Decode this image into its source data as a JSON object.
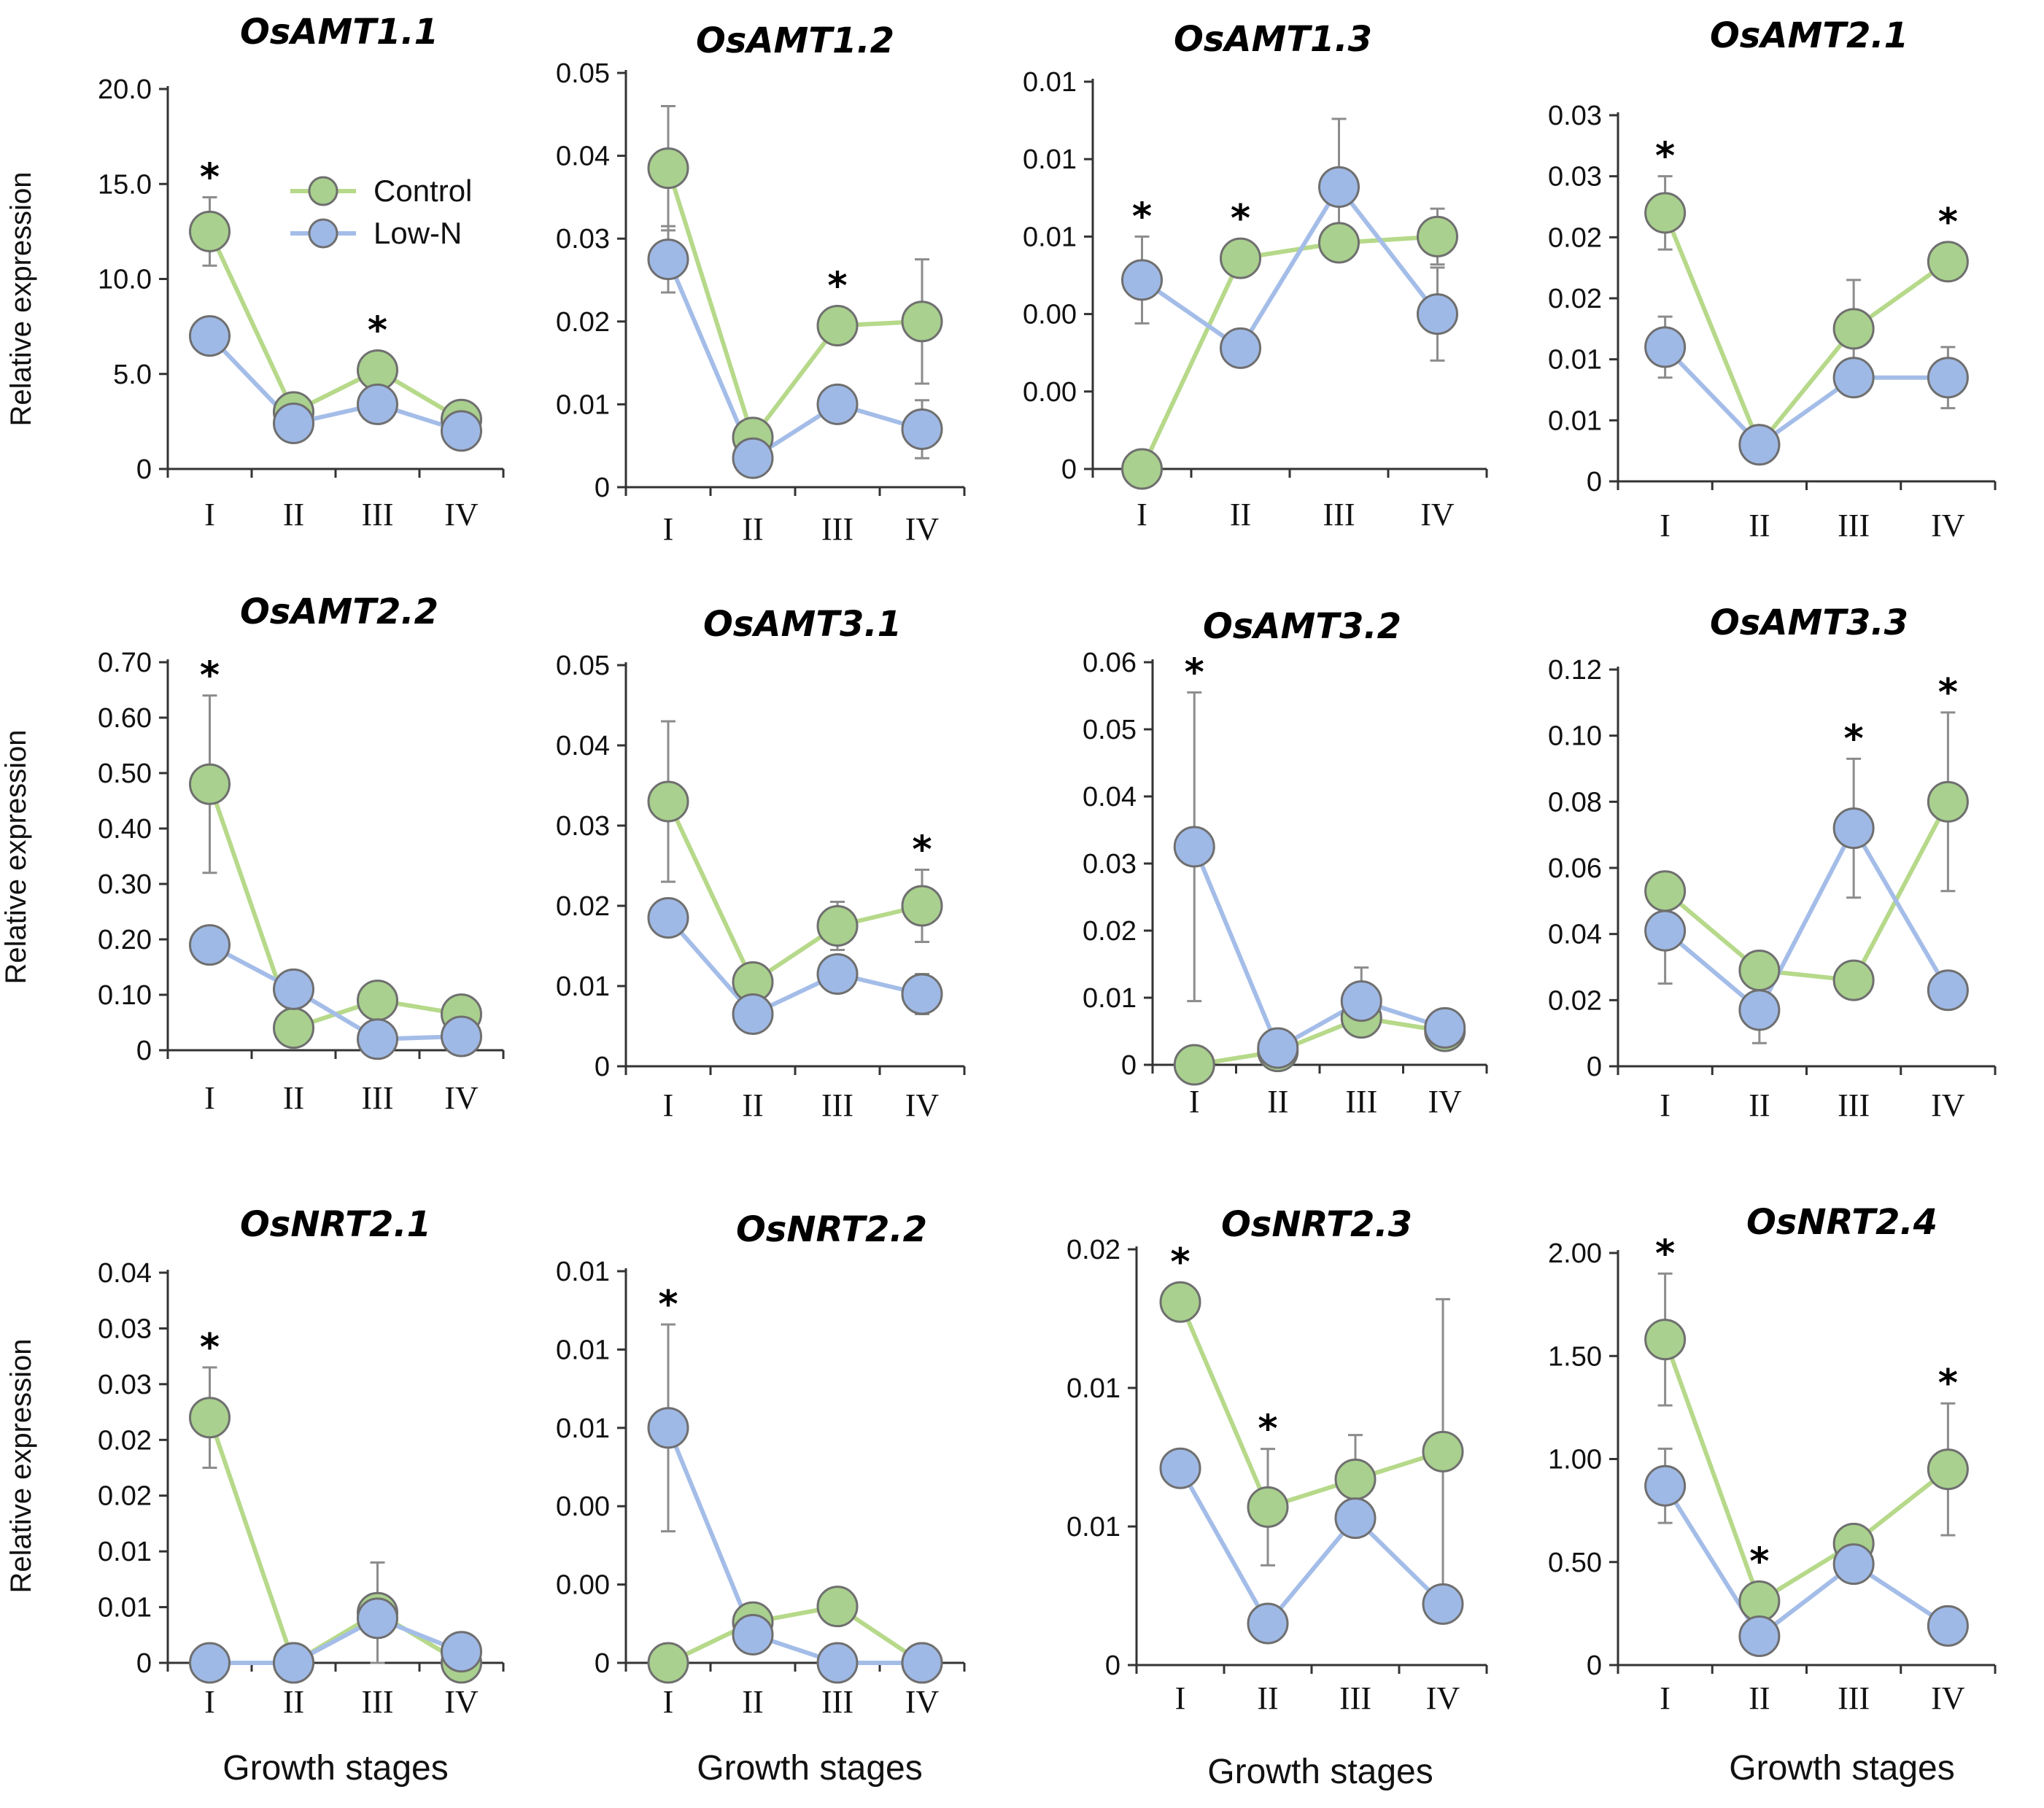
{
  "colors": {
    "control": "#a9d08e",
    "lown": "#9fb9e6",
    "control_line": "#b6d98a",
    "lown_line": "#a4bde8",
    "marker_edge": "#6f6f6f"
  },
  "chart_data": [
    {
      "type": "line",
      "title": "OsAMT1.1",
      "categories": [
        "I",
        "II",
        "III",
        "IV"
      ],
      "yticks": [
        "0",
        "5.0",
        "10.0",
        "15.0",
        "20.0"
      ],
      "ylim": [
        0,
        20
      ],
      "ylabel": "Relative expression",
      "xlabel": "",
      "series": [
        {
          "name": "Control",
          "values": [
            12.5,
            3.0,
            5.2,
            2.6
          ],
          "errors": [
            1.8,
            0.3,
            0.8,
            0.4
          ]
        },
        {
          "name": "Low-N",
          "values": [
            7.0,
            2.4,
            3.4,
            2.0
          ],
          "errors": [
            0.5,
            0.3,
            0.4,
            0.3
          ]
        }
      ],
      "significant": [
        true,
        false,
        true,
        false
      ],
      "legend": [
        "Control",
        "Low-N"
      ]
    },
    {
      "type": "line",
      "title": "OsAMT1.2",
      "categories": [
        "I",
        "II",
        "III",
        "IV"
      ],
      "yticks": [
        "0",
        "0.01",
        "0.02",
        "0.03",
        "0.04",
        "0.05"
      ],
      "ylim": [
        0,
        0.05
      ],
      "ylabel": "",
      "xlabel": "",
      "series": [
        {
          "name": "Control",
          "values": [
            0.0385,
            0.006,
            0.0195,
            0.02
          ],
          "errors": [
            0.0075,
            0.001,
            0.001,
            0.0075
          ]
        },
        {
          "name": "Low-N",
          "values": [
            0.0275,
            0.0035,
            0.01,
            0.007
          ],
          "errors": [
            0.004,
            0.001,
            0.001,
            0.0035
          ]
        }
      ],
      "significant": [
        false,
        false,
        true,
        false
      ]
    },
    {
      "type": "line",
      "title": "OsAMT1.3",
      "categories": [
        "I",
        "II",
        "III",
        "IV"
      ],
      "yticks": [
        "0",
        "0.00",
        "0.00",
        "0.01",
        "0.01",
        "0.01"
      ],
      "ylim": [
        0,
        0.0125
      ],
      "ylabel": "",
      "xlabel": "",
      "series": [
        {
          "name": "Control",
          "values": [
            0.0,
            0.0068,
            0.0073,
            0.0075
          ],
          "errors": [
            0.0,
            0.0002,
            0.0006,
            0.0009
          ]
        },
        {
          "name": "Low-N",
          "values": [
            0.0061,
            0.0039,
            0.0091,
            0.005
          ],
          "errors": [
            0.0014,
            0.0006,
            0.0022,
            0.0015
          ]
        }
      ],
      "significant": [
        true,
        true,
        false,
        false
      ]
    },
    {
      "type": "line",
      "title": "OsAMT2.1",
      "categories": [
        "I",
        "II",
        "III",
        "IV"
      ],
      "yticks": [
        "0",
        "0.01",
        "0.01",
        "0.02",
        "0.02",
        "0.03",
        "0.03"
      ],
      "ylim": [
        0,
        0.03
      ],
      "ylabel": "",
      "xlabel": "",
      "series": [
        {
          "name": "Control",
          "values": [
            0.022,
            0.003,
            0.0125,
            0.018
          ],
          "errors": [
            0.003,
            0.0005,
            0.004,
            0.001
          ]
        },
        {
          "name": "Low-N",
          "values": [
            0.011,
            0.003,
            0.0085,
            0.0085
          ],
          "errors": [
            0.0025,
            0.0005,
            0.0015,
            0.0025
          ]
        }
      ],
      "significant": [
        true,
        false,
        false,
        true
      ]
    },
    {
      "type": "line",
      "title": "OsAMT2.2",
      "categories": [
        "I",
        "II",
        "III",
        "IV"
      ],
      "yticks": [
        "0",
        "0.10",
        "0.20",
        "0.30",
        "0.40",
        "0.50",
        "0.60",
        "0.70"
      ],
      "ylim": [
        0,
        0.7
      ],
      "ylabel": "Relative expression",
      "xlabel": "",
      "series": [
        {
          "name": "Control",
          "values": [
            0.48,
            0.04,
            0.09,
            0.065
          ],
          "errors": [
            0.16,
            0.01,
            0.02,
            0.015
          ]
        },
        {
          "name": "Low-N",
          "values": [
            0.19,
            0.11,
            0.02,
            0.025
          ],
          "errors": [
            0.02,
            0.02,
            0.01,
            0.01
          ]
        }
      ],
      "significant": [
        true,
        false,
        false,
        false
      ]
    },
    {
      "type": "line",
      "title": "OsAMT3.1",
      "categories": [
        "I",
        "II",
        "III",
        "IV"
      ],
      "yticks": [
        "0",
        "0.01",
        "0.02",
        "0.03",
        "0.04",
        "0.05"
      ],
      "ylim": [
        0,
        0.05
      ],
      "ylabel": "",
      "xlabel": "",
      "series": [
        {
          "name": "Control",
          "values": [
            0.033,
            0.0105,
            0.0175,
            0.02
          ],
          "errors": [
            0.01,
            0.001,
            0.003,
            0.0045
          ]
        },
        {
          "name": "Low-N",
          "values": [
            0.0185,
            0.0065,
            0.0115,
            0.009
          ],
          "errors": [
            0.002,
            0.0015,
            0.002,
            0.0025
          ]
        }
      ],
      "significant": [
        false,
        false,
        false,
        true
      ]
    },
    {
      "type": "line",
      "title": "OsAMT3.2",
      "categories": [
        "I",
        "II",
        "III",
        "IV"
      ],
      "yticks": [
        "0",
        "0.01",
        "0.02",
        "0.03",
        "0.04",
        "0.05",
        "0.06"
      ],
      "ylim": [
        0,
        0.06
      ],
      "ylabel": "",
      "xlabel": "",
      "series": [
        {
          "name": "Control",
          "values": [
            0.0,
            0.002,
            0.007,
            0.005
          ],
          "errors": [
            0.0,
            0.001,
            0.002,
            0.001
          ]
        },
        {
          "name": "Low-N",
          "values": [
            0.0325,
            0.0025,
            0.0095,
            0.0055
          ],
          "errors": [
            0.023,
            0.002,
            0.005,
            0.002
          ]
        }
      ],
      "significant": [
        true,
        false,
        false,
        false
      ]
    },
    {
      "type": "line",
      "title": "OsAMT3.3",
      "categories": [
        "I",
        "II",
        "III",
        "IV"
      ],
      "yticks": [
        "0",
        "0.02",
        "0.04",
        "0.06",
        "0.08",
        "0.10",
        "0.12"
      ],
      "ylim": [
        0,
        0.12
      ],
      "ylabel": "",
      "xlabel": "",
      "series": [
        {
          "name": "Control",
          "values": [
            0.053,
            0.029,
            0.026,
            0.08
          ],
          "errors": [
            0.003,
            0.004,
            0.002,
            0.027
          ]
        },
        {
          "name": "Low-N",
          "values": [
            0.041,
            0.017,
            0.072,
            0.023
          ],
          "errors": [
            0.016,
            0.01,
            0.021,
            0.003
          ]
        }
      ],
      "significant": [
        false,
        false,
        true,
        true
      ]
    },
    {
      "type": "line",
      "title": "OsNRT2.1",
      "categories": [
        "I",
        "II",
        "III",
        "IV"
      ],
      "yticks": [
        "0",
        "0.01",
        "0.01",
        "0.02",
        "0.02",
        "0.03",
        "0.03",
        "0.04"
      ],
      "ylim": [
        0,
        0.035
      ],
      "ylabel": "Relative expression",
      "xlabel": "Growth stages",
      "series": [
        {
          "name": "Control",
          "values": [
            0.022,
            0.0,
            0.0045,
            0.0
          ],
          "errors": [
            0.0045,
            0.0,
            0.0045,
            0.0
          ]
        },
        {
          "name": "Low-N",
          "values": [
            0.0,
            0.0,
            0.004,
            0.001
          ],
          "errors": [
            0.0,
            0.0,
            0.001,
            0.0005
          ]
        }
      ],
      "significant": [
        true,
        false,
        false,
        false
      ]
    },
    {
      "type": "line",
      "title": "OsNRT2.2",
      "categories": [
        "I",
        "II",
        "III",
        "IV"
      ],
      "yticks": [
        "0",
        "0.00",
        "0.00",
        "0.01",
        "0.01",
        "0.01"
      ],
      "ylim": [
        0,
        0.0125
      ],
      "ylabel": "",
      "xlabel": "Growth stages",
      "series": [
        {
          "name": "Control",
          "values": [
            0.0,
            0.0013,
            0.0018,
            0.0
          ],
          "errors": [
            0.0,
            0.0003,
            0.0005,
            0.0
          ]
        },
        {
          "name": "Low-N",
          "values": [
            0.0075,
            0.0009,
            0.0,
            0.0
          ],
          "errors": [
            0.0033,
            0.0003,
            0.0,
            0.0
          ]
        }
      ],
      "significant": [
        true,
        false,
        false,
        false
      ]
    },
    {
      "type": "line",
      "title": "OsNRT2.3",
      "categories": [
        "I",
        "II",
        "III",
        "IV"
      ],
      "yticks": [
        "0",
        "0.01",
        "0.01",
        "0.02"
      ],
      "ylim": [
        0,
        0.015
      ],
      "ylabel": "",
      "xlabel": "Growth stages",
      "series": [
        {
          "name": "Control",
          "values": [
            0.0131,
            0.0057,
            0.0067,
            0.0077
          ],
          "errors": [
            0.0006,
            0.0021,
            0.0016,
            0.0055
          ]
        },
        {
          "name": "Low-N",
          "values": [
            0.0071,
            0.0015,
            0.0053,
            0.0022
          ],
          "errors": [
            0.0004,
            0.0003,
            0.0006,
            0.0003
          ]
        }
      ],
      "significant": [
        true,
        true,
        false,
        false
      ]
    },
    {
      "type": "line",
      "title": "OsNRT2.4",
      "categories": [
        "I",
        "II",
        "III",
        "IV"
      ],
      "yticks": [
        "0",
        "0.50",
        "1.00",
        "1.50",
        "2.00"
      ],
      "ylim": [
        0,
        2.0
      ],
      "ylabel": "",
      "xlabel": "Growth stages",
      "series": [
        {
          "name": "Control",
          "values": [
            1.58,
            0.31,
            0.59,
            0.95
          ],
          "errors": [
            0.32,
            0.05,
            0.06,
            0.32
          ]
        },
        {
          "name": "Low-N",
          "values": [
            0.87,
            0.14,
            0.49,
            0.19
          ],
          "errors": [
            0.18,
            0.04,
            0.06,
            0.03
          ]
        }
      ],
      "significant": [
        true,
        true,
        false,
        true
      ]
    }
  ]
}
